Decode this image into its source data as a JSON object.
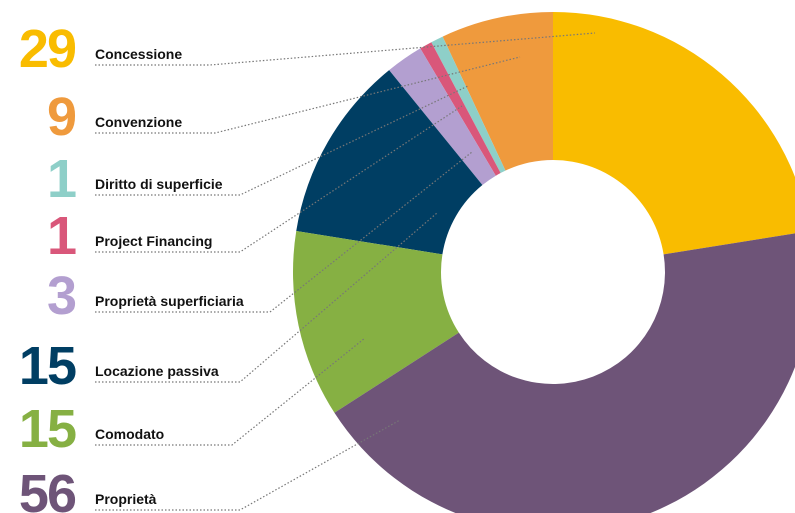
{
  "chart_data": {
    "type": "donut",
    "categories": [
      "Concessione",
      "Convenzione",
      "Diritto di superficie",
      "Project Financing",
      "Proprietà superficiaria",
      "Locazione passiva",
      "Comodato",
      "Proprietà"
    ],
    "values": [
      29,
      9,
      1,
      1,
      3,
      15,
      15,
      56
    ],
    "colors": [
      "#f9bc00",
      "#ef9a3d",
      "#8ecfc8",
      "#d9577a",
      "#b39fd0",
      "#003e63",
      "#86b043",
      "#6e5478"
    ]
  }
}
